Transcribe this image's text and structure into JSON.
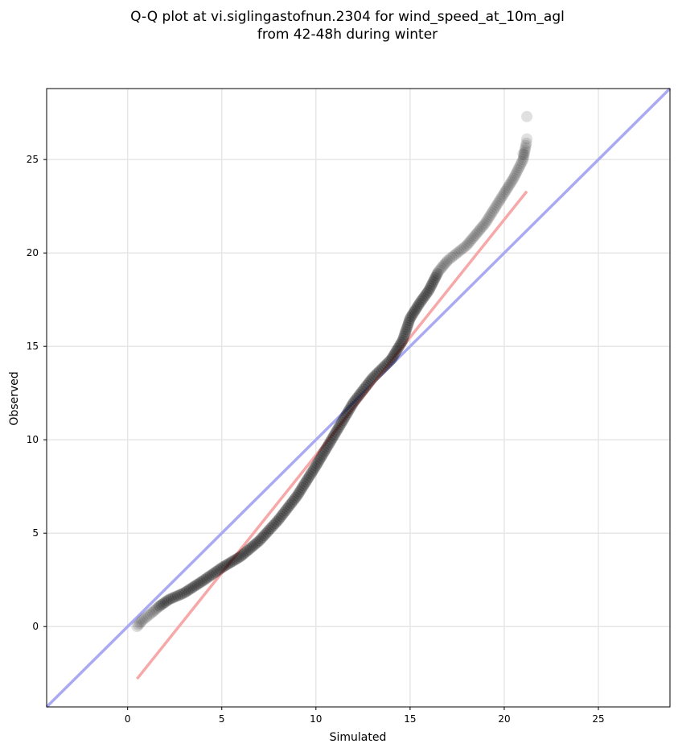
{
  "chart_data": {
    "type": "scatter",
    "title": [
      "Q-Q plot at vi.siglingastofnun.2304 for wind_speed_at_10m_agl",
      "from 42-48h during winter"
    ],
    "xlabel": "Simulated",
    "ylabel": "Observed",
    "xlim": [
      -4.3,
      28.8
    ],
    "ylim": [
      -4.3,
      28.8
    ],
    "xticks": [
      0,
      5,
      10,
      15,
      20,
      25
    ],
    "yticks": [
      0,
      5,
      10,
      15,
      20,
      25
    ],
    "grid": true,
    "colors": {
      "points": "#000000",
      "identity_line": "#aaaaf2",
      "fit_line": "#f7a8a8",
      "grid": "#e6e6e6"
    },
    "quantile_curve": [
      [
        0.5,
        0.0
      ],
      [
        0.8,
        0.35
      ],
      [
        1.3,
        0.75
      ],
      [
        1.7,
        1.1
      ],
      [
        2.2,
        1.45
      ],
      [
        3.0,
        1.8
      ],
      [
        4.0,
        2.45
      ],
      [
        5.0,
        3.15
      ],
      [
        6.0,
        3.75
      ],
      [
        7.0,
        4.6
      ],
      [
        8.0,
        5.7
      ],
      [
        9.0,
        7.0
      ],
      [
        10.0,
        8.6
      ],
      [
        11.0,
        10.3
      ],
      [
        12.0,
        12.0
      ],
      [
        13.0,
        13.3
      ],
      [
        14.0,
        14.3
      ],
      [
        14.6,
        15.3
      ],
      [
        15.0,
        16.5
      ],
      [
        15.5,
        17.3
      ],
      [
        16.0,
        18.0
      ],
      [
        16.5,
        19.0
      ],
      [
        17.0,
        19.6
      ],
      [
        18.0,
        20.4
      ],
      [
        19.0,
        21.6
      ],
      [
        20.0,
        23.2
      ],
      [
        20.5,
        24.0
      ],
      [
        21.0,
        25.0
      ],
      [
        21.2,
        26.0
      ]
    ],
    "outliers": [
      [
        21.0,
        25.3
      ],
      [
        21.2,
        26.1
      ],
      [
        21.2,
        27.3
      ]
    ],
    "identity_line": {
      "x": [
        -4.3,
        28.8
      ],
      "y": [
        -4.3,
        28.8
      ]
    },
    "fit_line": {
      "x": [
        0.5,
        21.2
      ],
      "y": [
        -2.8,
        23.3
      ]
    }
  }
}
